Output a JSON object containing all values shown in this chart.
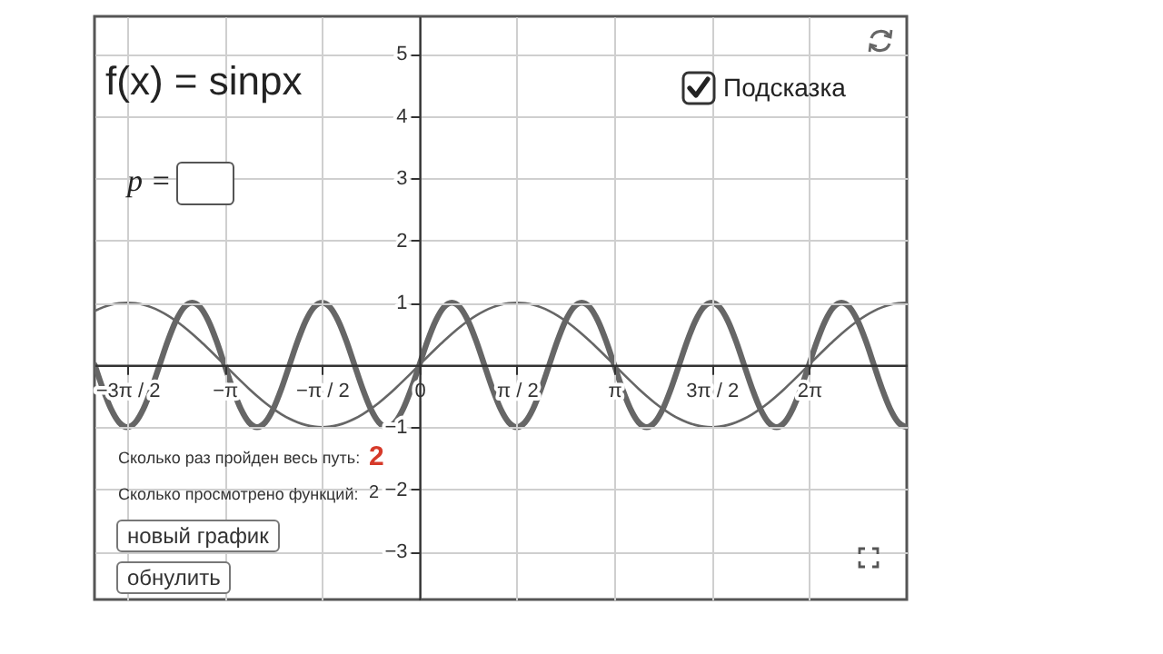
{
  "chart_data": {
    "type": "line",
    "title": "f(x) = sinpx",
    "annotations": [
      "p =",
      "Подсказка",
      "Сколько раз пройден весь путь:",
      "2",
      "Сколько просмотрено функций:",
      "2",
      "новый график",
      "обнулить"
    ],
    "x": [
      -5.236,
      -5.105,
      -4.974,
      -4.843,
      -4.712,
      -4.581,
      -4.451,
      -4.32,
      -4.189,
      -4.058,
      -3.927,
      -3.796,
      -3.665,
      -3.534,
      -3.403,
      -3.272,
      -3.142,
      -3.011,
      -2.88,
      -2.749,
      -2.618,
      -2.487,
      -2.356,
      -2.225,
      -2.094,
      -1.963,
      -1.833,
      -1.702,
      -1.571,
      -1.44,
      -1.309,
      -1.178,
      -1.047,
      -0.916,
      -0.785,
      -0.654,
      -0.524,
      -0.393,
      -0.262,
      -0.131,
      0,
      0.131,
      0.262,
      0.393,
      0.524,
      0.654,
      0.785,
      0.916,
      1.047,
      1.178,
      1.309,
      1.44,
      1.571,
      1.702,
      1.833,
      1.963,
      2.094,
      2.225,
      2.356,
      2.487,
      2.618,
      2.749,
      2.88,
      3.011,
      3.142,
      3.272,
      3.403,
      3.534,
      3.665,
      3.796,
      3.927,
      4.058,
      4.189,
      4.32,
      4.451,
      4.581,
      4.712,
      4.843,
      4.974,
      5.105,
      5.236,
      5.367,
      5.498,
      5.629,
      5.76,
      5.89,
      6.021,
      6.152,
      6.283,
      6.414,
      6.545,
      6.676,
      6.807,
      6.938,
      7.069,
      7.2,
      7.33,
      7.461,
      7.592,
      7.723,
      7.854
    ],
    "series": [
      {
        "color": "#666666",
        "values": [
          0,
          -0.383,
          -0.707,
          -0.924,
          -1,
          -0.924,
          -0.707,
          -0.383,
          0,
          0.383,
          0.707,
          0.924,
          1,
          0.924,
          0.707,
          0.383,
          0,
          -0.383,
          -0.707,
          -0.924,
          -1,
          -0.924,
          -0.707,
          -0.383,
          0,
          0.383,
          0.707,
          0.924,
          1,
          0.924,
          0.707,
          0.383,
          0,
          -0.383,
          -0.707,
          -0.924,
          -1,
          -0.924,
          -0.707,
          -0.383,
          0,
          0.383,
          0.707,
          0.924,
          1,
          0.924,
          0.707,
          0.383,
          0,
          -0.383,
          -0.707,
          -0.924,
          -1,
          -0.924,
          -0.707,
          -0.383,
          0,
          0.383,
          0.707,
          0.924,
          1,
          0.924,
          0.707,
          0.383,
          0,
          -0.383,
          -0.707,
          -0.924,
          -1,
          -0.924,
          -0.707,
          -0.383,
          0,
          0.383,
          0.707,
          0.924,
          1,
          0.924,
          0.707,
          0.383,
          0,
          -0.383,
          -0.707,
          -0.924,
          -1,
          -0.924,
          -0.707,
          -0.383,
          0,
          0.383,
          0.707,
          0.924,
          1,
          0.924,
          0.707,
          0.383,
          0,
          -0.383,
          -0.707,
          -0.924,
          -1
        ]
      },
      {
        "color": "#666666",
        "values": [
          0.866,
          0.924,
          0.966,
          0.991,
          1,
          0.991,
          0.966,
          0.924,
          0.866,
          0.793,
          0.707,
          0.609,
          0.5,
          0.383,
          0.259,
          0.131,
          0,
          -0.131,
          -0.259,
          -0.383,
          -0.5,
          -0.609,
          -0.707,
          -0.793,
          -0.866,
          -0.924,
          -0.966,
          -0.991,
          -1,
          -0.991,
          -0.966,
          -0.924,
          -0.866,
          -0.793,
          -0.707,
          -0.609,
          -0.5,
          -0.383,
          -0.259,
          -0.131,
          0,
          0.131,
          0.259,
          0.383,
          0.5,
          0.609,
          0.707,
          0.793,
          0.866,
          0.924,
          0.966,
          0.991,
          1,
          0.991,
          0.966,
          0.924,
          0.866,
          0.793,
          0.707,
          0.609,
          0.5,
          0.383,
          0.259,
          0.131,
          0,
          -0.131,
          -0.259,
          -0.383,
          -0.5,
          -0.609,
          -0.707,
          -0.793,
          -0.866,
          -0.924,
          -0.966,
          -0.991,
          -1,
          -0.991,
          -0.966,
          -0.924,
          -0.866,
          -0.793,
          -0.707,
          -0.609,
          -0.5,
          -0.383,
          -0.259,
          -0.131,
          0,
          0.131,
          0.259,
          0.383,
          0.5,
          0.609,
          0.707,
          0.793,
          0.866,
          0.924,
          0.966,
          0.991,
          1
        ]
      }
    ],
    "xlim": [
      -5.24,
      7.86
    ],
    "ylim": [
      -3.77,
      5.6
    ],
    "xticks": [
      {
        "value": -4.712,
        "label": "−3π / 2"
      },
      {
        "value": -3.142,
        "label": "−π"
      },
      {
        "value": -1.571,
        "label": "−π / 2"
      },
      {
        "value": 0,
        "label": "0"
      },
      {
        "value": 1.571,
        "label": "π / 2"
      },
      {
        "value": 3.142,
        "label": "π"
      },
      {
        "value": 4.712,
        "label": "3π / 2"
      },
      {
        "value": 6.283,
        "label": "2π"
      }
    ],
    "yticks": [
      -3,
      -2,
      -1,
      1,
      2,
      3,
      4,
      5
    ],
    "grid": true
  }
}
